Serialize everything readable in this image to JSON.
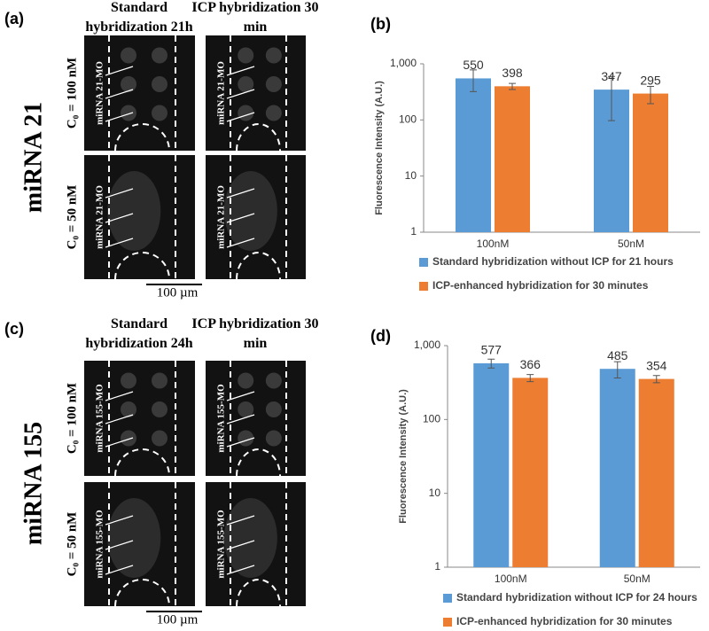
{
  "panels": [
    "(a)",
    "(b)",
    "(c)",
    "(d)"
  ],
  "micrographs": [
    {
      "row_label": "miRNA 21",
      "col_titles": [
        "Standard hybridization 21h",
        "ICP hybridization 30 min"
      ],
      "conc": [
        "C₀ = 100 nM",
        "C₀ = 50 nM"
      ],
      "probe": "miRNA 21-MO",
      "scale": "100 µm"
    },
    {
      "row_label": "miRNA 155",
      "col_titles": [
        "Standard hybridization 24h",
        "ICP hybridization 30 min"
      ],
      "conc": [
        "C₀ = 100 nM",
        "C₀ = 50 nM"
      ],
      "probe": "miRNA 155-MO",
      "scale": "100 µm"
    }
  ],
  "chart_data": [
    {
      "type": "bar",
      "y_label": "Fluorescence Intensity (A.U.)",
      "log_y": true,
      "categories": [
        "100nM",
        "50nM"
      ],
      "series": [
        {
          "name": "Standard hybridization without ICP for 21 hours",
          "color": "#5b9bd5",
          "values": [
            550,
            347
          ],
          "errors": [
            230,
            250
          ]
        },
        {
          "name": "ICP-enhanced hybridization for 30 minutes",
          "color": "#ed7d31",
          "values": [
            398,
            295
          ],
          "errors": [
            50,
            100
          ]
        }
      ],
      "ylim": [
        1,
        1000
      ],
      "yticks": [
        1,
        10,
        100,
        {
          "value": 1000,
          "label": "1,000"
        }
      ],
      "legend": "bottom"
    },
    {
      "type": "bar",
      "y_label": "Fluorescence Intensity (A.U.)",
      "log_y": true,
      "categories": [
        "100nM",
        "50nM"
      ],
      "series": [
        {
          "name": "Standard hybridization without ICP for 24 hours",
          "color": "#5b9bd5",
          "values": [
            577,
            485
          ],
          "errors": [
            80,
            120
          ]
        },
        {
          "name": "ICP-enhanced hybridization for 30 minutes",
          "color": "#ed7d31",
          "values": [
            366,
            354
          ],
          "errors": [
            40,
            40
          ]
        }
      ],
      "ylim": [
        1,
        1000
      ],
      "yticks": [
        1,
        10,
        100,
        {
          "value": 1000,
          "label": "1,000"
        }
      ],
      "legend": "bottom"
    }
  ]
}
